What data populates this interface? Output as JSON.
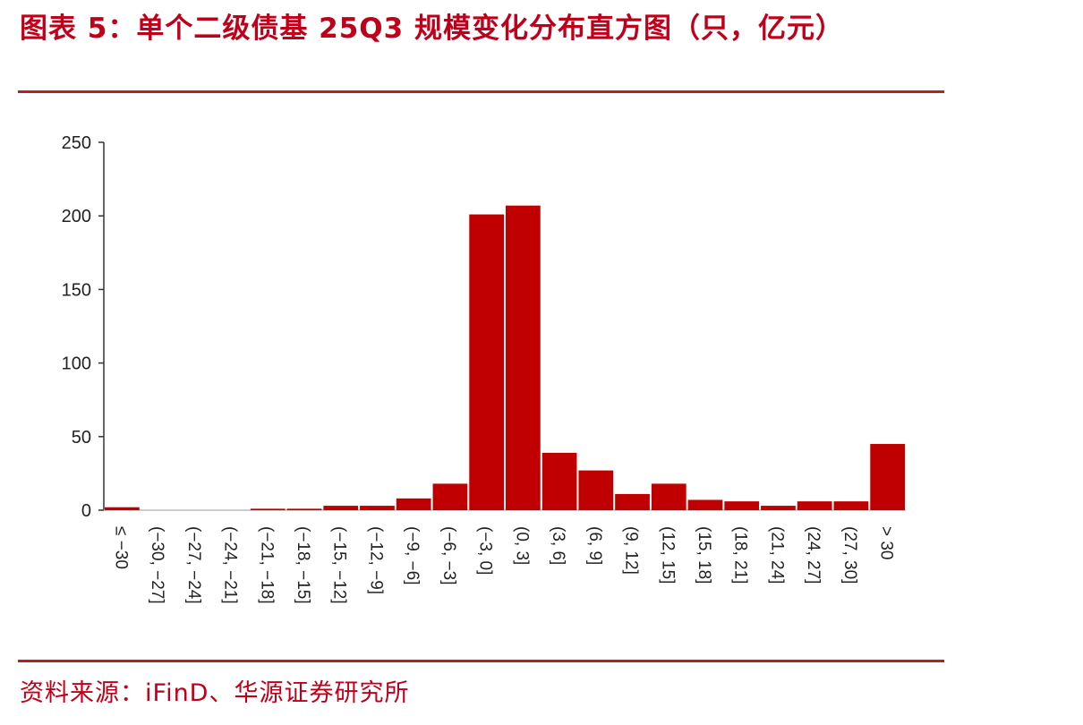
{
  "figure": {
    "title": "图表 5：单个二级债基 25Q3 规模变化分布直方图（只，亿元）",
    "source": "资料来源：iFinD、华源证券研究所"
  },
  "colors": {
    "accent": "#c0001a",
    "bar": "#c00000",
    "rule": "#b22222"
  },
  "chart_data": {
    "type": "bar",
    "title": "",
    "xlabel": "",
    "ylabel": "",
    "ylim": [
      0,
      250
    ],
    "yticks": [
      0,
      50,
      100,
      150,
      200,
      250
    ],
    "grid": false,
    "categories": [
      "≤ −30",
      "(−30, −27]",
      "(−27, −24]",
      "(−24, −21]",
      "(−21, −18]",
      "(−18, −15]",
      "(−15, −12]",
      "(−12, −9]",
      "(−9, −6]",
      "(−6, −3]",
      "(−3, 0]",
      "(0, 3]",
      "(3, 6]",
      "(6, 9]",
      "(9, 12]",
      "(12, 15]",
      "(15, 18]",
      "(18, 21]",
      "(21, 24]",
      "(24, 27]",
      "(27, 30]",
      "> 30"
    ],
    "values": [
      2,
      0,
      0,
      0,
      1,
      1,
      3,
      3,
      8,
      18,
      201,
      207,
      39,
      27,
      11,
      18,
      7,
      6,
      3,
      6,
      6,
      45
    ]
  }
}
